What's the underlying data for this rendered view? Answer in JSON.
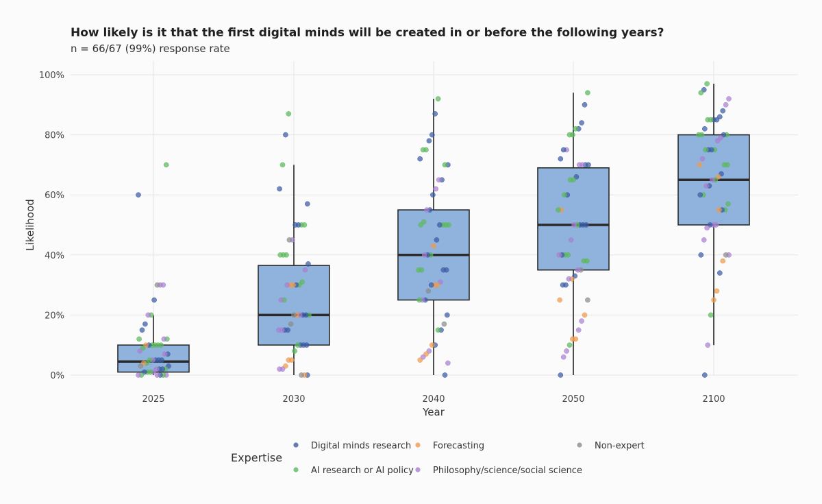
{
  "chart_data": {
    "type": "box",
    "title": "How likely is it that the first digital minds will be created in or before the following years?",
    "subtitle": "n = 66/67 (99%) response rate",
    "xlabel": "Year",
    "ylabel": "Likelihood",
    "categories": [
      "2025",
      "2030",
      "2040",
      "2050",
      "2100"
    ],
    "y_ticks": [
      "0%",
      "20%",
      "40%",
      "60%",
      "80%",
      "100%"
    ],
    "ylim": [
      0,
      100
    ],
    "grid": true,
    "box_color": "#8fb3dc",
    "boxes": [
      {
        "year": "2025",
        "q1": 1,
        "median": 4.5,
        "q3": 10,
        "whisker_low": 0,
        "whisker_high": 20
      },
      {
        "year": "2030",
        "q1": 10,
        "median": 20,
        "q3": 36.5,
        "whisker_low": 0,
        "whisker_high": 70
      },
      {
        "year": "2040",
        "q1": 25,
        "median": 40,
        "q3": 55,
        "whisker_low": 0,
        "whisker_high": 92
      },
      {
        "year": "2050",
        "q1": 35,
        "median": 50,
        "q3": 69,
        "whisker_low": 0,
        "whisker_high": 94
      },
      {
        "year": "2100",
        "q1": 50,
        "median": 65,
        "q3": 80,
        "whisker_low": 10,
        "whisker_high": 97
      }
    ],
    "legend": {
      "title": "Expertise",
      "placement": "bottom",
      "items": [
        {
          "key": "dm",
          "label": "Digital minds research",
          "color": "#3b5ba5"
        },
        {
          "key": "fc",
          "label": "Forecasting",
          "color": "#ee9a4d"
        },
        {
          "key": "ne",
          "label": "Non-expert",
          "color": "#8c8c8c"
        },
        {
          "key": "ai",
          "label": "AI research or AI policy",
          "color": "#5cb85c"
        },
        {
          "key": "ph",
          "label": "Philosophy/science/social science",
          "color": "#a97fd0"
        }
      ]
    },
    "points": {
      "2025": [
        [
          "dm",
          60
        ],
        [
          "ai",
          70
        ],
        [
          "ph",
          30
        ],
        [
          "ph",
          30
        ],
        [
          "ne",
          30
        ],
        [
          "dm",
          25
        ],
        [
          "ai",
          20
        ],
        [
          "ph",
          20
        ],
        [
          "dm",
          17
        ],
        [
          "dm",
          15
        ],
        [
          "ai",
          12
        ],
        [
          "ai",
          12
        ],
        [
          "ph",
          12
        ],
        [
          "ai",
          10
        ],
        [
          "ai",
          10
        ],
        [
          "ai",
          10
        ],
        [
          "ai",
          10
        ],
        [
          "dm",
          10
        ],
        [
          "fc",
          10
        ],
        [
          "ai",
          9
        ],
        [
          "ph",
          8
        ],
        [
          "dm",
          7
        ],
        [
          "ph",
          7
        ],
        [
          "dm",
          5
        ],
        [
          "dm",
          5
        ],
        [
          "dm",
          5
        ],
        [
          "ph",
          5
        ],
        [
          "ai",
          5
        ],
        [
          "ai",
          4
        ],
        [
          "fc",
          4
        ],
        [
          "ne",
          3
        ],
        [
          "dm",
          3
        ],
        [
          "ai",
          2
        ],
        [
          "dm",
          2
        ],
        [
          "dm",
          2
        ],
        [
          "ph",
          2
        ],
        [
          "ph",
          1
        ],
        [
          "ai",
          1
        ],
        [
          "ai",
          1
        ],
        [
          "dm",
          1
        ],
        [
          "ai",
          0
        ],
        [
          "ph",
          0
        ],
        [
          "ph",
          0
        ],
        [
          "ai",
          0
        ],
        [
          "dm",
          0
        ],
        [
          "ph",
          0
        ]
      ],
      "2030": [
        [
          "ai",
          87
        ],
        [
          "dm",
          80
        ],
        [
          "ai",
          70
        ],
        [
          "dm",
          62
        ],
        [
          "dm",
          57
        ],
        [
          "ai",
          50
        ],
        [
          "ai",
          50
        ],
        [
          "dm",
          50
        ],
        [
          "dm",
          50
        ],
        [
          "ph",
          45
        ],
        [
          "ne",
          45
        ],
        [
          "ai",
          40
        ],
        [
          "ai",
          40
        ],
        [
          "ai",
          40
        ],
        [
          "dm",
          37
        ],
        [
          "ph",
          35
        ],
        [
          "ai",
          31
        ],
        [
          "ai",
          30
        ],
        [
          "dm",
          30
        ],
        [
          "fc",
          30
        ],
        [
          "fc",
          30
        ],
        [
          "ph",
          30
        ],
        [
          "ai",
          25
        ],
        [
          "ph",
          25
        ],
        [
          "ai",
          20
        ],
        [
          "dm",
          20
        ],
        [
          "dm",
          20
        ],
        [
          "ph",
          20
        ],
        [
          "fc",
          20
        ],
        [
          "ne",
          20
        ],
        [
          "ne",
          17
        ],
        [
          "dm",
          15
        ],
        [
          "dm",
          15
        ],
        [
          "ph",
          15
        ],
        [
          "ph",
          15
        ],
        [
          "dm",
          10
        ],
        [
          "dm",
          10
        ],
        [
          "dm",
          10
        ],
        [
          "ai",
          10
        ],
        [
          "ai",
          8
        ],
        [
          "fc",
          5
        ],
        [
          "fc",
          5
        ],
        [
          "fc",
          3
        ],
        [
          "ph",
          2
        ],
        [
          "ph",
          2
        ],
        [
          "dm",
          0
        ],
        [
          "fc",
          0
        ],
        [
          "ne",
          0
        ]
      ],
      "2040": [
        [
          "ai",
          92
        ],
        [
          "dm",
          87
        ],
        [
          "dm",
          80
        ],
        [
          "dm",
          78
        ],
        [
          "ai",
          75
        ],
        [
          "ai",
          75
        ],
        [
          "dm",
          72
        ],
        [
          "dm",
          70
        ],
        [
          "ai",
          70
        ],
        [
          "dm",
          65
        ],
        [
          "ph",
          65
        ],
        [
          "ph",
          62
        ],
        [
          "dm",
          60
        ],
        [
          "dm",
          55
        ],
        [
          "ph",
          55
        ],
        [
          "ai",
          51
        ],
        [
          "ai",
          50
        ],
        [
          "ai",
          50
        ],
        [
          "ai",
          50
        ],
        [
          "ai",
          50
        ],
        [
          "dm",
          50
        ],
        [
          "dm",
          45
        ],
        [
          "fc",
          43
        ],
        [
          "ai",
          40
        ],
        [
          "dm",
          40
        ],
        [
          "ph",
          40
        ],
        [
          "ai",
          35
        ],
        [
          "ai",
          35
        ],
        [
          "dm",
          35
        ],
        [
          "dm",
          35
        ],
        [
          "ph",
          31
        ],
        [
          "fc",
          30
        ],
        [
          "fc",
          30
        ],
        [
          "dm",
          30
        ],
        [
          "ne",
          28
        ],
        [
          "dm",
          25
        ],
        [
          "ph",
          25
        ],
        [
          "ai",
          25
        ],
        [
          "dm",
          20
        ],
        [
          "ne",
          17
        ],
        [
          "dm",
          15
        ],
        [
          "ai",
          15
        ],
        [
          "dm",
          10
        ],
        [
          "fc",
          10
        ],
        [
          "ph",
          8
        ],
        [
          "fc",
          7
        ],
        [
          "ph",
          6
        ],
        [
          "fc",
          5
        ],
        [
          "ph",
          4
        ],
        [
          "dm",
          0
        ]
      ],
      "2050": [
        [
          "ai",
          94
        ],
        [
          "dm",
          90
        ],
        [
          "dm",
          84
        ],
        [
          "dm",
          82
        ],
        [
          "ai",
          82
        ],
        [
          "ai",
          80
        ],
        [
          "ai",
          80
        ],
        [
          "ph",
          75
        ],
        [
          "dm",
          75
        ],
        [
          "dm",
          72
        ],
        [
          "dm",
          70
        ],
        [
          "dm",
          70
        ],
        [
          "ph",
          70
        ],
        [
          "ph",
          70
        ],
        [
          "dm",
          66
        ],
        [
          "ai",
          65
        ],
        [
          "ai",
          65
        ],
        [
          "dm",
          60
        ],
        [
          "ai",
          60
        ],
        [
          "fc",
          55
        ],
        [
          "ai",
          55
        ],
        [
          "dm",
          50
        ],
        [
          "dm",
          50
        ],
        [
          "dm",
          50
        ],
        [
          "ai",
          50
        ],
        [
          "ph",
          50
        ],
        [
          "ph",
          45
        ],
        [
          "ai",
          40
        ],
        [
          "ai",
          40
        ],
        [
          "dm",
          40
        ],
        [
          "ph",
          40
        ],
        [
          "ai",
          38
        ],
        [
          "ai",
          38
        ],
        [
          "ne",
          35
        ],
        [
          "ph",
          35
        ],
        [
          "dm",
          33
        ],
        [
          "fc",
          32
        ],
        [
          "ph",
          32
        ],
        [
          "dm",
          30
        ],
        [
          "dm",
          30
        ],
        [
          "fc",
          25
        ],
        [
          "ne",
          25
        ],
        [
          "fc",
          20
        ],
        [
          "ph",
          18
        ],
        [
          "ph",
          15
        ],
        [
          "fc",
          12
        ],
        [
          "fc",
          12
        ],
        [
          "ai",
          10
        ],
        [
          "ph",
          8
        ],
        [
          "ph",
          6
        ],
        [
          "dm",
          0
        ]
      ],
      "2100": [
        [
          "ai",
          97
        ],
        [
          "dm",
          95
        ],
        [
          "ai",
          94
        ],
        [
          "ph",
          92
        ],
        [
          "ph",
          90
        ],
        [
          "dm",
          88
        ],
        [
          "dm",
          86
        ],
        [
          "dm",
          85
        ],
        [
          "dm",
          85
        ],
        [
          "ai",
          85
        ],
        [
          "ai",
          85
        ],
        [
          "dm",
          82
        ],
        [
          "ai",
          80
        ],
        [
          "ai",
          80
        ],
        [
          "ai",
          80
        ],
        [
          "dm",
          80
        ],
        [
          "ph",
          79
        ],
        [
          "ph",
          78
        ],
        [
          "ai",
          75
        ],
        [
          "dm",
          75
        ],
        [
          "dm",
          75
        ],
        [
          "ai",
          75
        ],
        [
          "ph",
          72
        ],
        [
          "fc",
          70
        ],
        [
          "ai",
          70
        ],
        [
          "ai",
          70
        ],
        [
          "dm",
          67
        ],
        [
          "fc",
          66
        ],
        [
          "ai",
          65
        ],
        [
          "ph",
          65
        ],
        [
          "dm",
          63
        ],
        [
          "ph",
          63
        ],
        [
          "ai",
          60
        ],
        [
          "dm",
          60
        ],
        [
          "ai",
          57
        ],
        [
          "ai",
          55
        ],
        [
          "dm",
          55
        ],
        [
          "fc",
          55
        ],
        [
          "ph",
          50
        ],
        [
          "ph",
          50
        ],
        [
          "dm",
          50
        ],
        [
          "ph",
          49
        ],
        [
          "ph",
          45
        ],
        [
          "dm",
          40
        ],
        [
          "ph",
          40
        ],
        [
          "ne",
          40
        ],
        [
          "fc",
          38
        ],
        [
          "dm",
          34
        ],
        [
          "fc",
          28
        ],
        [
          "fc",
          25
        ],
        [
          "ai",
          20
        ],
        [
          "ph",
          10
        ],
        [
          "dm",
          0
        ]
      ]
    }
  }
}
